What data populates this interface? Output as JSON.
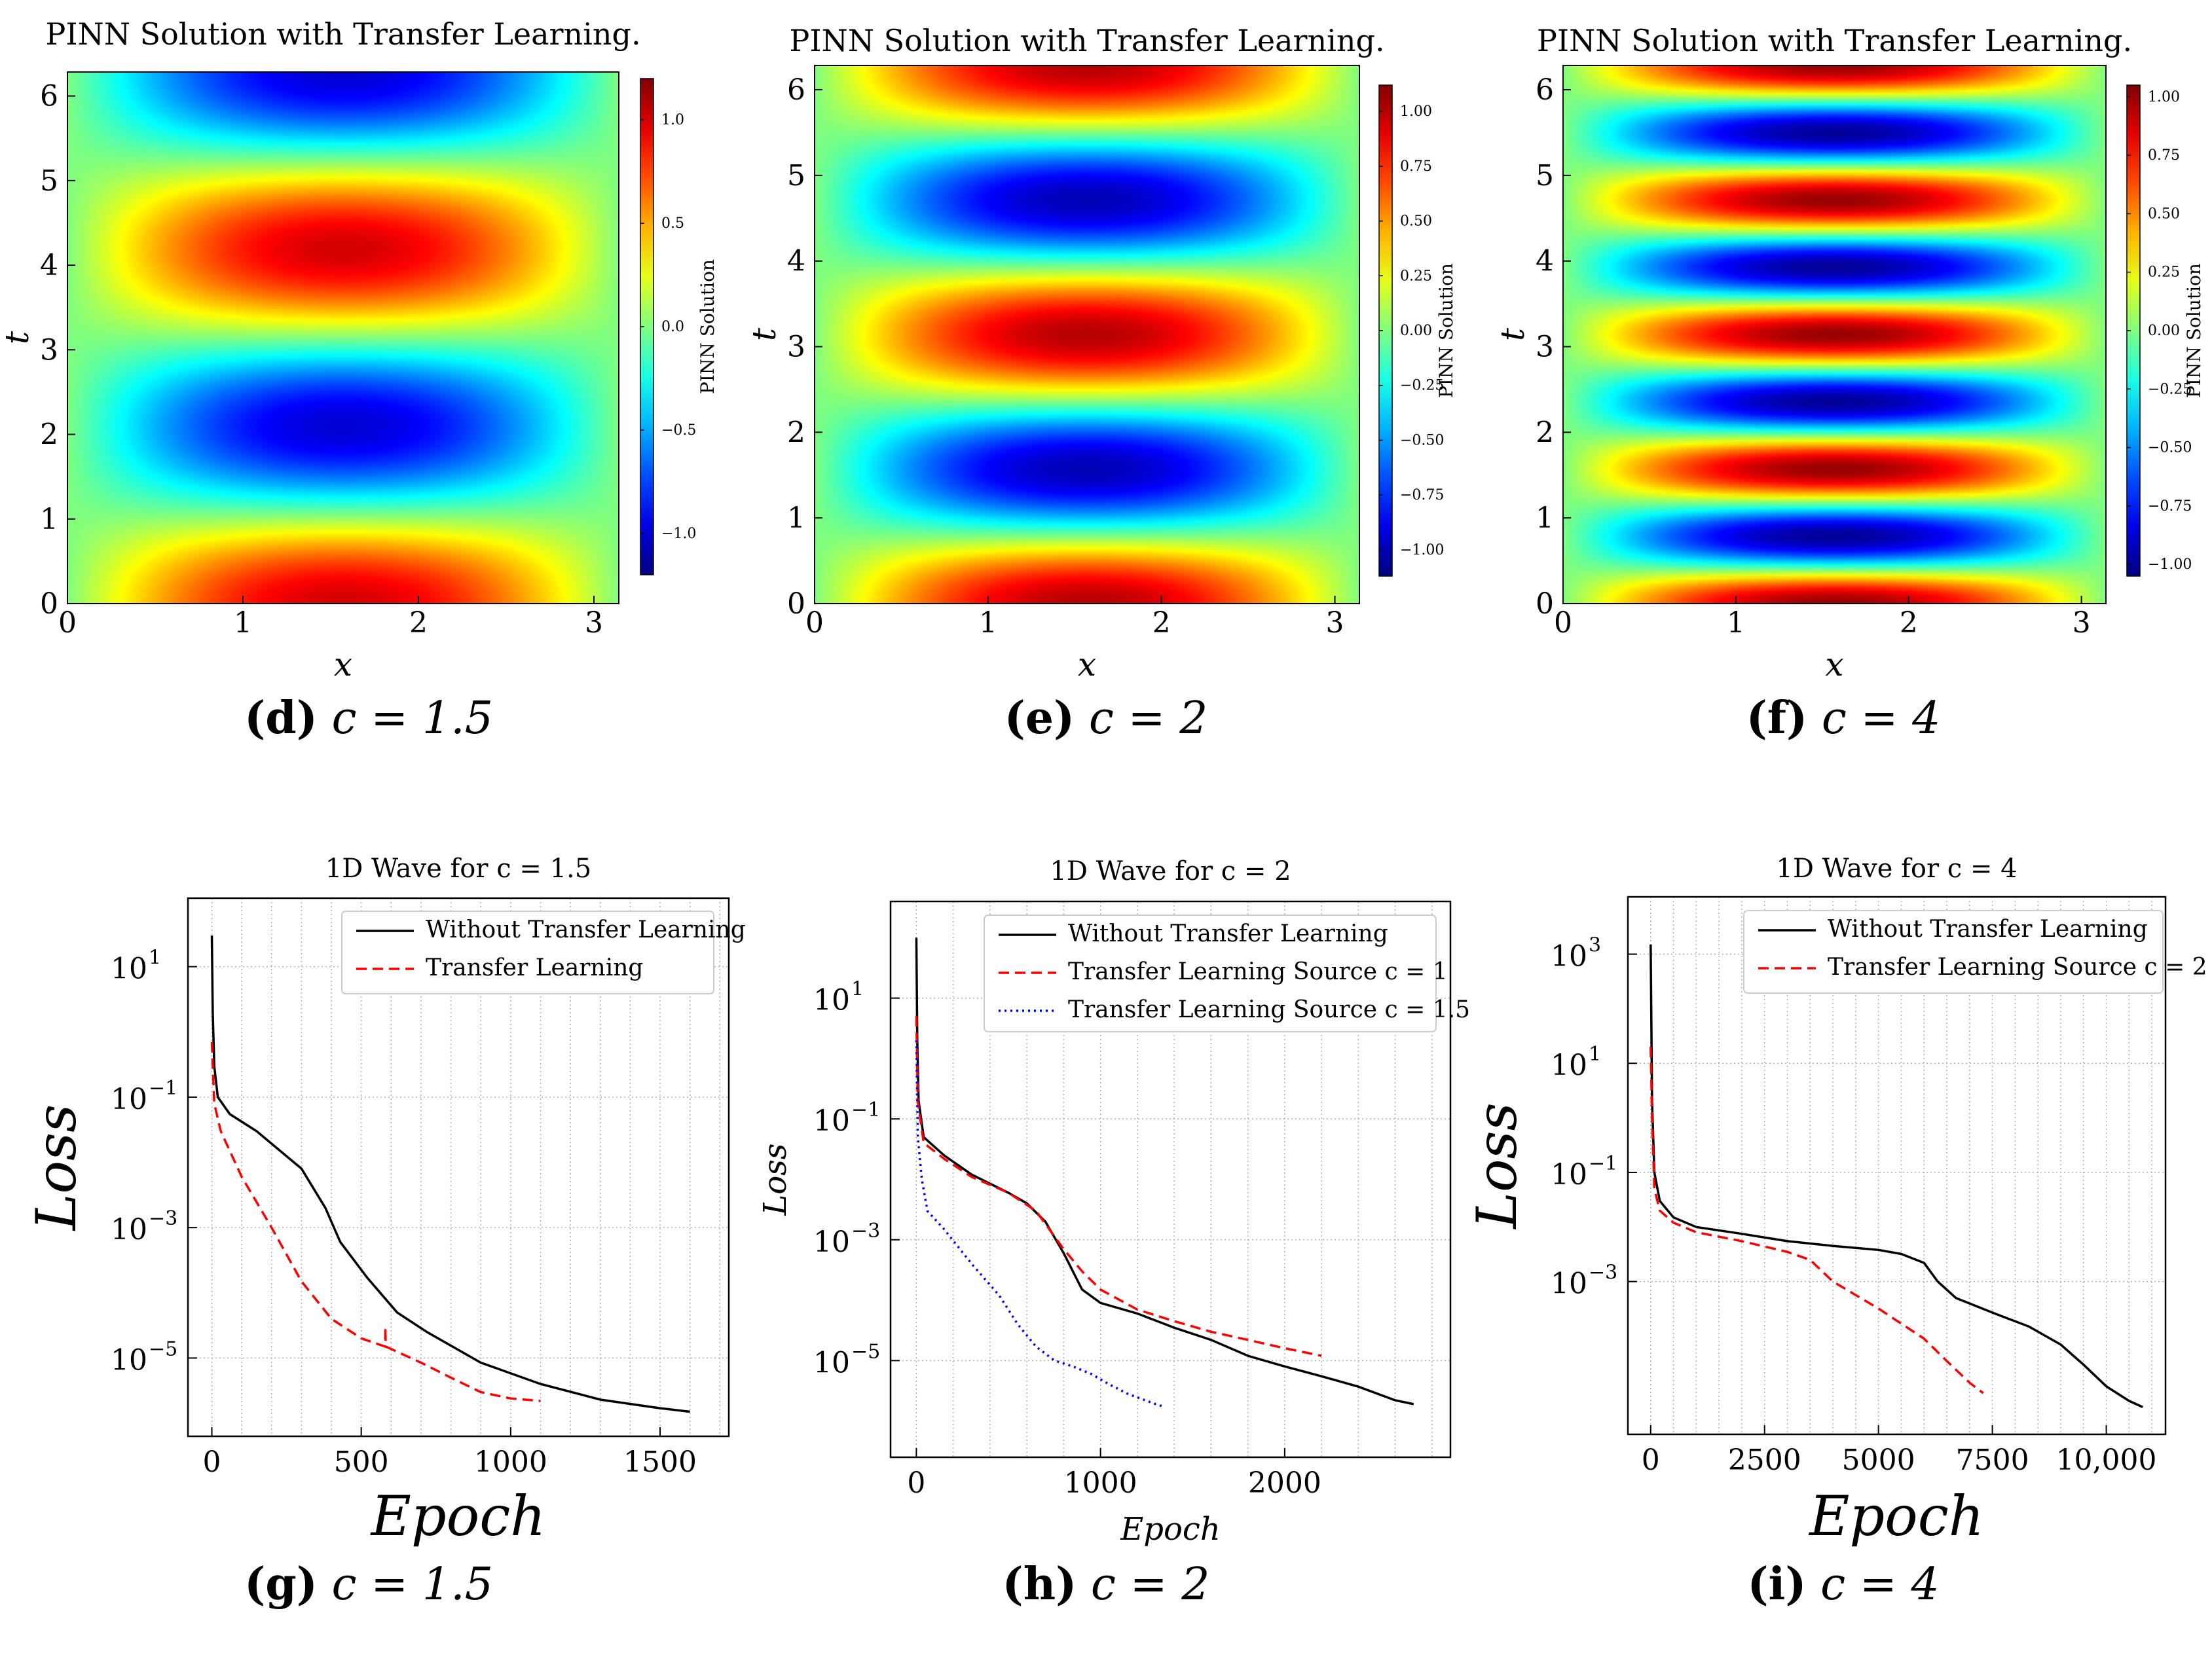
{
  "chart_data": [
    {
      "type": "heatmap",
      "title": "PINN Solution with Transfer Learning.",
      "xlabel": "x",
      "ylabel": "t",
      "xlim": [
        0,
        3.1416
      ],
      "ylim": [
        0,
        6.2832
      ],
      "xticks": [
        "0",
        "1",
        "2",
        "3"
      ],
      "yticks": [
        "0",
        "1",
        "2",
        "3",
        "4",
        "5",
        "6"
      ],
      "colorbar_label": "PINN Solution",
      "colorbar_range": [
        -1.2,
        1.2
      ],
      "colorbar_ticks": [
        -1.0,
        -0.5,
        0.0,
        0.5,
        1.0
      ],
      "colorbar_tick_labels": [
        "−1.0",
        "−0.5",
        "0.0",
        "0.5",
        "1.0"
      ],
      "wave_speed": 1.5,
      "function": "sin(x)*cos(c*t)",
      "caption": {
        "letter": "(d)",
        "text": "c = 1.5"
      }
    },
    {
      "type": "heatmap",
      "title": "PINN Solution with Transfer Learning.",
      "xlabel": "x",
      "ylabel": "t",
      "xlim": [
        0,
        3.1416
      ],
      "ylim": [
        0,
        6.2832
      ],
      "xticks": [
        "0",
        "1",
        "2",
        "3"
      ],
      "yticks": [
        "0",
        "1",
        "2",
        "3",
        "4",
        "5",
        "6"
      ],
      "colorbar_label": "PINN Solution",
      "colorbar_range": [
        -1.12,
        1.12
      ],
      "colorbar_ticks": [
        -1.0,
        -0.75,
        -0.5,
        -0.25,
        0.0,
        0.25,
        0.5,
        0.75,
        1.0
      ],
      "colorbar_tick_labels": [
        "−1.00",
        "−0.75",
        "−0.50",
        "−0.25",
        "0.00",
        "0.25",
        "0.50",
        "0.75",
        "1.00"
      ],
      "wave_speed": 2,
      "function": "sin(x)*cos(c*t)",
      "caption": {
        "letter": "(e)",
        "text": "c = 2"
      }
    },
    {
      "type": "heatmap",
      "title": "PINN Solution with Transfer Learning.",
      "xlabel": "x",
      "ylabel": "t",
      "xlim": [
        0,
        3.1416
      ],
      "ylim": [
        0,
        6.2832
      ],
      "xticks": [
        "0",
        "1",
        "2",
        "3"
      ],
      "yticks": [
        "0",
        "1",
        "2",
        "3",
        "4",
        "5",
        "6"
      ],
      "colorbar_label": "PINN Solution",
      "colorbar_range": [
        -1.05,
        1.05
      ],
      "colorbar_ticks": [
        -1.0,
        -0.75,
        -0.5,
        -0.25,
        0.0,
        0.25,
        0.5,
        0.75,
        1.0
      ],
      "colorbar_tick_labels": [
        "−1.00",
        "−0.75",
        "−0.50",
        "−0.25",
        "0.00",
        "0.25",
        "0.50",
        "0.75",
        "1.00"
      ],
      "wave_speed": 4,
      "function": "sin(x)*cos(c*t)",
      "caption": {
        "letter": "(f)",
        "text": "c = 4"
      }
    },
    {
      "type": "line",
      "title": "1D Wave for c = 1.5",
      "xlabel": "Epoch",
      "ylabel": "Loss",
      "xlim": [
        -80,
        1730
      ],
      "ylog": true,
      "ylim_exp": [
        -6.2,
        2.05
      ],
      "xticks": [
        0,
        500,
        1000,
        1500
      ],
      "xtick_labels": [
        "0",
        "500",
        "1000",
        "1500"
      ],
      "yticks_exp": [
        -5,
        -3,
        -1,
        1
      ],
      "ytick_labels": [
        "10",
        "10",
        "10",
        "10"
      ],
      "ytick_sups": [
        "−5",
        "−3",
        "−1",
        "1"
      ],
      "legend": "top-right",
      "series": [
        {
          "name": "Without Transfer Learning",
          "style": "solid",
          "color": "#000000",
          "points": [
            [
              0,
              30
            ],
            [
              3,
              2
            ],
            [
              8,
              0.3
            ],
            [
              20,
              0.1
            ],
            [
              60,
              0.055
            ],
            [
              150,
              0.03
            ],
            [
              300,
              0.008
            ],
            [
              380,
              0.002
            ],
            [
              430,
              0.0006
            ],
            [
              520,
              0.00017
            ],
            [
              620,
              5e-05
            ],
            [
              720,
              2.5e-05
            ],
            [
              900,
              8.5e-06
            ],
            [
              1100,
              4e-06
            ],
            [
              1300,
              2.3e-06
            ],
            [
              1500,
              1.7e-06
            ],
            [
              1600,
              1.5e-06
            ]
          ]
        },
        {
          "name": "Transfer Learning",
          "style": "dashed",
          "color": "#ff0000",
          "points": [
            [
              0,
              0.7
            ],
            [
              8,
              0.08
            ],
            [
              30,
              0.03
            ],
            [
              100,
              0.006
            ],
            [
              200,
              0.001
            ],
            [
              300,
              0.00015
            ],
            [
              400,
              4e-05
            ],
            [
              500,
              2e-05
            ],
            [
              580,
              1.5e-05
            ],
            [
              581,
              3e-05
            ],
            [
              582,
              1.5e-05
            ],
            [
              700,
              8.5e-06
            ],
            [
              800,
              5e-06
            ],
            [
              900,
              3e-06
            ],
            [
              1000,
              2.4e-06
            ],
            [
              1100,
              2.2e-06
            ]
          ]
        }
      ],
      "caption": {
        "letter": "(g)",
        "text": "c = 1.5"
      }
    },
    {
      "type": "line",
      "title": "1D Wave for c = 2",
      "xlabel": "Epoch",
      "ylabel": "Loss",
      "xlim": [
        -140,
        2900
      ],
      "ylog": true,
      "ylim_exp": [
        -6.6,
        2.6
      ],
      "xticks": [
        0,
        1000,
        2000
      ],
      "xtick_labels": [
        "0",
        "1000",
        "2000"
      ],
      "yticks_exp": [
        -5,
        -3,
        -1,
        1
      ],
      "ytick_labels": [
        "10",
        "10",
        "10",
        "10"
      ],
      "ytick_sups": [
        "−5",
        "−3",
        "−1",
        "1"
      ],
      "legend": "top-right",
      "series": [
        {
          "name": "Without Transfer Learning",
          "style": "solid",
          "color": "#000000",
          "points": [
            [
              0,
              100
            ],
            [
              5,
              2
            ],
            [
              12,
              0.2
            ],
            [
              40,
              0.05
            ],
            [
              150,
              0.025
            ],
            [
              300,
              0.012
            ],
            [
              500,
              0.006
            ],
            [
              600,
              0.004
            ],
            [
              700,
              0.002
            ],
            [
              800,
              0.0006
            ],
            [
              900,
              0.00015
            ],
            [
              1000,
              9e-05
            ],
            [
              1200,
              6e-05
            ],
            [
              1400,
              3.5e-05
            ],
            [
              1600,
              2.2e-05
            ],
            [
              1800,
              1.2e-05
            ],
            [
              2000,
              8e-06
            ],
            [
              2200,
              5.5e-06
            ],
            [
              2400,
              3.7e-06
            ],
            [
              2600,
              2.2e-06
            ],
            [
              2700,
              1.9e-06
            ]
          ]
        },
        {
          "name": "Transfer Learning Source c = 1",
          "style": "dashed",
          "color": "#ff0000",
          "points": [
            [
              0,
              5
            ],
            [
              8,
              0.2
            ],
            [
              40,
              0.04
            ],
            [
              150,
              0.022
            ],
            [
              300,
              0.011
            ],
            [
              500,
              0.006
            ],
            [
              650,
              0.003
            ],
            [
              800,
              0.0007
            ],
            [
              900,
              0.0003
            ],
            [
              1000,
              0.00015
            ],
            [
              1200,
              7e-05
            ],
            [
              1400,
              4.5e-05
            ],
            [
              1600,
              3e-05
            ],
            [
              1800,
              2.2e-05
            ],
            [
              2000,
              1.6e-05
            ],
            [
              2200,
              1.2e-05
            ]
          ]
        },
        {
          "name": "Transfer Learning Source c = 1.5",
          "style": "dotted",
          "color": "#0000ff",
          "points": [
            [
              0,
              2
            ],
            [
              8,
              0.05
            ],
            [
              30,
              0.01
            ],
            [
              60,
              0.003
            ],
            [
              150,
              0.0015
            ],
            [
              300,
              0.0004
            ],
            [
              450,
              0.00012
            ],
            [
              550,
              4e-05
            ],
            [
              650,
              1.7e-05
            ],
            [
              750,
              1e-05
            ],
            [
              850,
              8e-06
            ],
            [
              950,
              6e-06
            ],
            [
              1050,
              4e-06
            ],
            [
              1150,
              2.8e-06
            ],
            [
              1300,
              1.9e-06
            ],
            [
              1350,
              1.7e-06
            ]
          ]
        }
      ],
      "caption": {
        "letter": "(h)",
        "text": "c = 2"
      }
    },
    {
      "type": "line",
      "title": "1D Wave for c = 4",
      "xlabel": "Epoch",
      "ylabel": "Loss",
      "xlim": [
        -500,
        11300
      ],
      "ylog": true,
      "ylim_exp": [
        -5.8,
        4.05
      ],
      "xticks": [
        0,
        2500,
        5000,
        7500,
        10000
      ],
      "xtick_labels": [
        "0",
        "2500",
        "5000",
        "7500",
        "10,000"
      ],
      "yticks_exp": [
        -3,
        -1,
        1,
        3
      ],
      "ytick_labels": [
        "10",
        "10",
        "10",
        "10"
      ],
      "ytick_sups": [
        "−3",
        "−1",
        "1",
        "3"
      ],
      "legend": "top-right",
      "series": [
        {
          "name": "Without Transfer Learning",
          "style": "solid",
          "color": "#000000",
          "points": [
            [
              0,
              1500
            ],
            [
              30,
              2
            ],
            [
              80,
              0.1
            ],
            [
              200,
              0.03
            ],
            [
              500,
              0.015
            ],
            [
              1000,
              0.01
            ],
            [
              2000,
              0.0075
            ],
            [
              3000,
              0.0055
            ],
            [
              4000,
              0.0045
            ],
            [
              5000,
              0.0038
            ],
            [
              5500,
              0.0032
            ],
            [
              6000,
              0.0022
            ],
            [
              6300,
              0.001
            ],
            [
              6700,
              0.0005
            ],
            [
              7500,
              0.00027
            ],
            [
              8300,
              0.00015
            ],
            [
              9000,
              7e-05
            ],
            [
              9500,
              3e-05
            ],
            [
              10000,
              1.2e-05
            ],
            [
              10500,
              6.5e-06
            ],
            [
              10800,
              5e-06
            ]
          ]
        },
        {
          "name": "Transfer Learning Source c = 2",
          "style": "dashed",
          "color": "#ff0000",
          "points": [
            [
              0,
              20
            ],
            [
              30,
              1
            ],
            [
              80,
              0.05
            ],
            [
              200,
              0.02
            ],
            [
              500,
              0.012
            ],
            [
              1000,
              0.008
            ],
            [
              2000,
              0.0055
            ],
            [
              3000,
              0.0035
            ],
            [
              3500,
              0.0025
            ],
            [
              4000,
              0.001
            ],
            [
              5000,
              0.00032
            ],
            [
              6000,
              9e-05
            ],
            [
              6500,
              3.5e-05
            ],
            [
              7000,
              1.4e-05
            ],
            [
              7300,
              9e-06
            ]
          ]
        }
      ],
      "caption": {
        "letter": "(i)",
        "text": "c = 4"
      }
    }
  ]
}
